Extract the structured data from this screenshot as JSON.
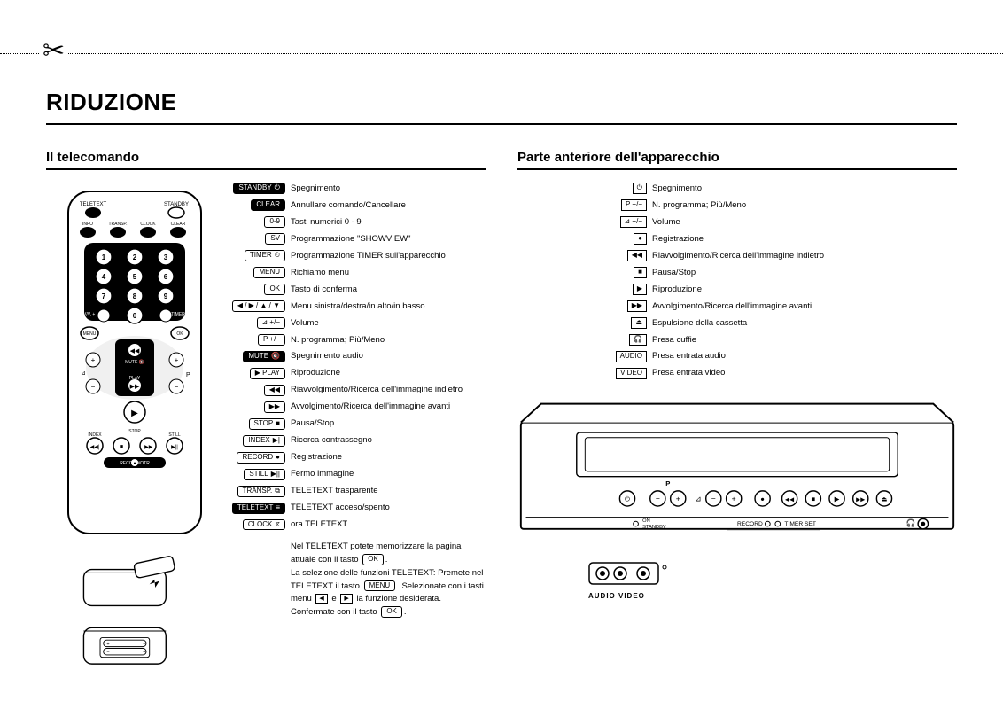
{
  "title": "RIDUZIONE",
  "left": {
    "heading": "Il telecomando",
    "legend": [
      {
        "label": "STANDBY",
        "label_style": "dark",
        "icon": "⏻",
        "desc": "Spegnimento"
      },
      {
        "label": "CLEAR",
        "label_style": "dark",
        "desc": "Annullare comando/Cancellare"
      },
      {
        "label": "0-9",
        "label_style": "box",
        "desc": "Tasti numerici 0 - 9"
      },
      {
        "label": "SV",
        "label_style": "box",
        "desc": "Programmazione \"SHOWVIEW\""
      },
      {
        "label": "TIMER",
        "label_style": "box",
        "icon": "⏲",
        "desc": "Programmazione TIMER sull'apparecchio"
      },
      {
        "label": "MENU",
        "label_style": "box",
        "desc": "Richiamo menu"
      },
      {
        "label": "OK",
        "label_style": "box",
        "desc": "Tasto di conferma"
      },
      {
        "label": "◀ / ▶ / ▲ / ▼",
        "label_style": "box",
        "desc": "Menu sinistra/destra/in alto/in basso"
      },
      {
        "label": "⊿ +/−",
        "label_style": "box",
        "desc": "Volume"
      },
      {
        "label": "P +/−",
        "label_style": "box",
        "desc": "N. programma; Più/Meno"
      },
      {
        "label": "MUTE",
        "label_style": "dark",
        "icon": "🔇",
        "desc": "Spegnimento audio"
      },
      {
        "label": "▶ PLAY",
        "label_style": "box",
        "desc": "Riproduzione"
      },
      {
        "label": "◀◀",
        "label_style": "box",
        "desc": "Riavvolgimento/Ricerca dell'immagine indietro"
      },
      {
        "label": "▶▶",
        "label_style": "box",
        "desc": "Avvolgimento/Ricerca dell'immagine avanti"
      },
      {
        "label": "STOP",
        "label_style": "box",
        "icon": "■",
        "desc": "Pausa/Stop"
      },
      {
        "label": "INDEX",
        "label_style": "box",
        "icon": "▶|",
        "desc": "Ricerca contrassegno"
      },
      {
        "label": "RECORD",
        "label_style": "box",
        "icon": "●",
        "desc": "Registrazione"
      },
      {
        "label": "STILL",
        "label_style": "box",
        "icon": "▶||",
        "desc": "Fermo immagine"
      },
      {
        "label": "TRANSP.",
        "label_style": "box",
        "icon": "⧉",
        "desc": "TELETEXT trasparente"
      },
      {
        "label": "TELETEXT",
        "label_style": "dark",
        "icon": "≡",
        "desc": "TELETEXT acceso/spento"
      },
      {
        "label": "CLOCK",
        "label_style": "box",
        "icon": "⧖",
        "desc": "ora TELETEXT"
      }
    ],
    "notes": {
      "p1a": "Nel TELETEXT potete memorizzare la pagina attuale con il tasto ",
      "p1key": "OK",
      "p1b": ".",
      "p2a": "La selezione delle funzioni TELETEXT: Premete nel TELETEXT il tasto ",
      "p2key1": "MENU",
      "p2b": ". Selezionate con i tasti menu ",
      "p2i1": "◀",
      "p2c": " e ",
      "p2i2": "▶",
      "p2d": " la funzione desiderata. Confermate con il tasto ",
      "p2key2": "OK",
      "p2e": "."
    }
  },
  "right": {
    "heading": "Parte anteriore dell'apparecchio",
    "legend": [
      {
        "label": "⏻",
        "label_style": "sq",
        "desc": "Spegnimento"
      },
      {
        "label": "P +/−",
        "label_style": "sq",
        "desc": "N. programma; Più/Meno"
      },
      {
        "label": "⊿ +/−",
        "label_style": "sq",
        "desc": "Volume"
      },
      {
        "label": "●",
        "label_style": "sq",
        "desc": "Registrazione"
      },
      {
        "label": "◀◀",
        "label_style": "sq",
        "desc": "Riavvolgimento/Ricerca dell'immagine indietro"
      },
      {
        "label": "■",
        "label_style": "sq",
        "desc": "Pausa/Stop"
      },
      {
        "label": "▶",
        "label_style": "sq",
        "desc": "Riproduzione"
      },
      {
        "label": "▶▶",
        "label_style": "sq",
        "desc": "Avvolgimento/Ricerca dell'immagine avanti"
      },
      {
        "label": "⏏",
        "label_style": "sq",
        "desc": "Espulsione della cassetta"
      },
      {
        "label": "🎧",
        "label_style": "sq",
        "desc": "Presa cuffie"
      },
      {
        "label": "AUDIO",
        "label_style": "sq",
        "desc": "Presa entrata audio"
      },
      {
        "label": "VIDEO",
        "label_style": "sq",
        "desc": "Presa entrata video"
      }
    ],
    "av_label": "AUDIO VIDEO"
  },
  "remote": {
    "top_labels": {
      "teletext": "TELETEXT",
      "standby": "STANDBY"
    },
    "row_labels": {
      "info": "INFO",
      "transp": "TRANSP.",
      "clock": "CLOCK",
      "clear": "CLEAR"
    },
    "side_labels": {
      "svv": "SV/V. +",
      "timer": "TIMER",
      "menu": "MENU",
      "ok": "OK",
      "p": "P",
      "play": "PLAY",
      "stop": "STOP",
      "index": "INDEX",
      "still": "STILL",
      "record": "RECORD/OTR"
    },
    "digits": [
      "1",
      "2",
      "3",
      "4",
      "5",
      "6",
      "7",
      "8",
      "9",
      "0"
    ]
  },
  "vcr": {
    "standby_label": "ON\nSTANDBY",
    "record_label": "RECORD",
    "timer_label": "TIMER SET",
    "p_label": "P"
  }
}
